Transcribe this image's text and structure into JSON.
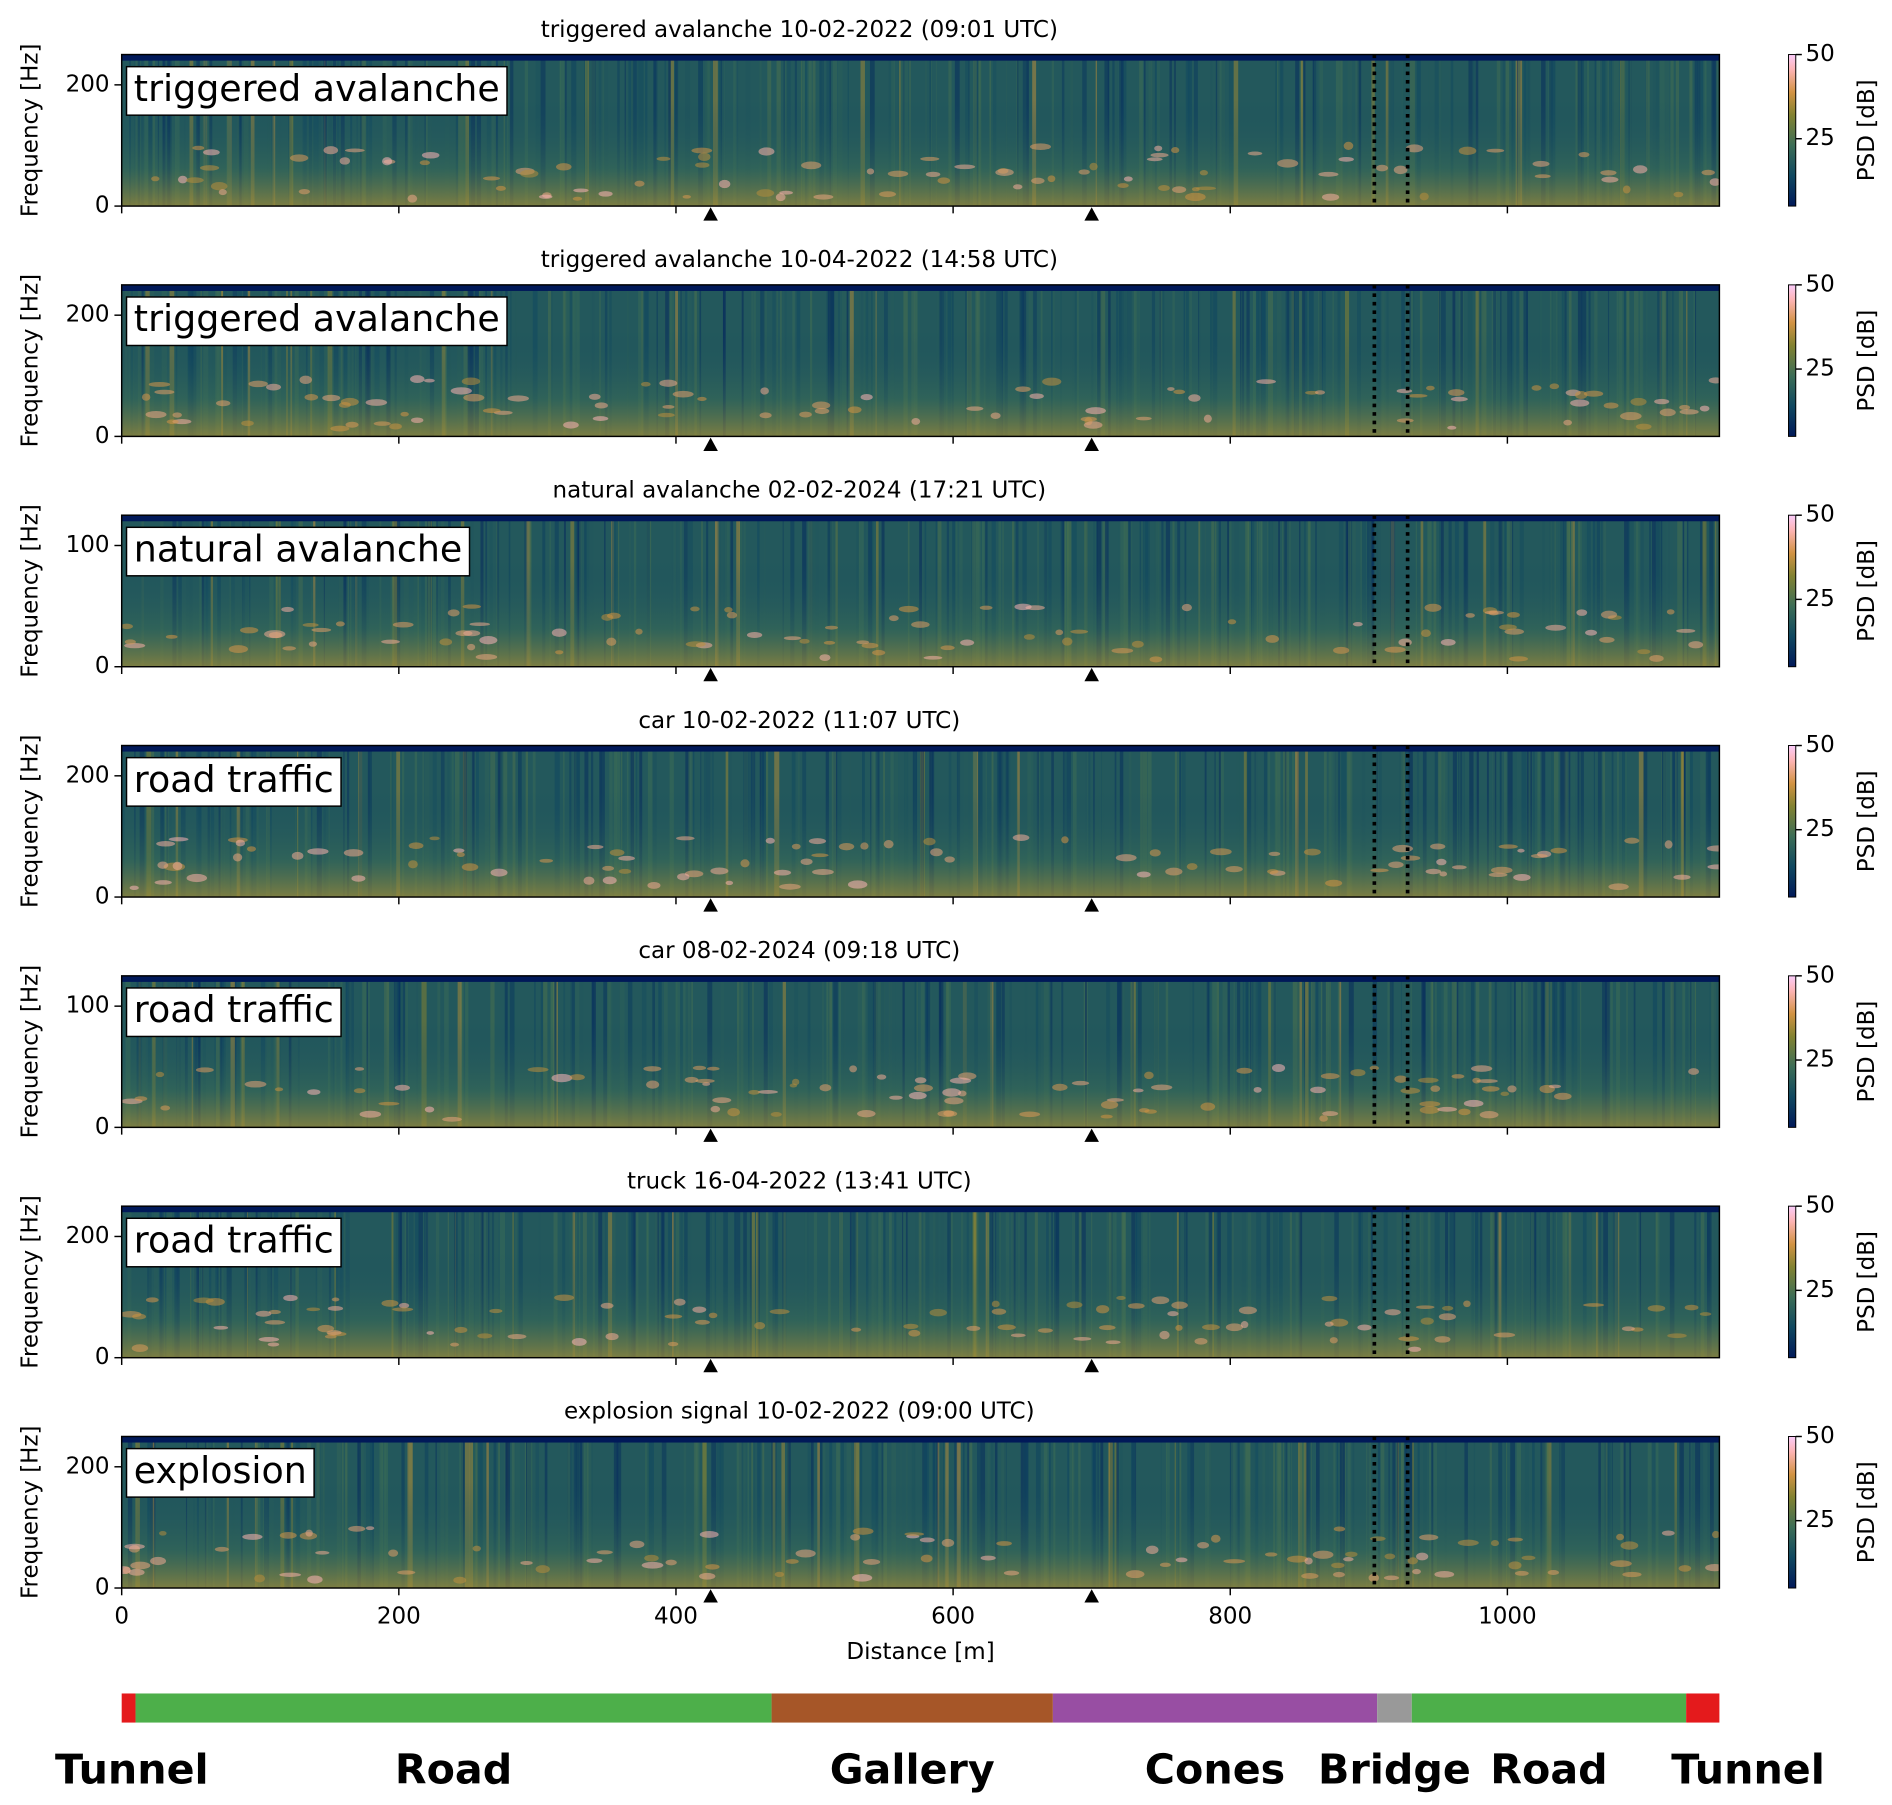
{
  "chart_data": [
    {
      "type": "heatmap",
      "title": "triggered avalanche 10-02-2022 (09:01 UTC)",
      "label": "triggered avalanche",
      "ylabel": "Frequency [Hz]",
      "ylim": [
        0,
        250
      ],
      "yticks": [
        0,
        200
      ],
      "colorbar_label": "PSD [dB]",
      "clim": [
        5,
        50
      ],
      "cticks": [
        25,
        50
      ]
    },
    {
      "type": "heatmap",
      "title": "triggered avalanche 10-04-2022 (14:58 UTC)",
      "label": "triggered avalanche",
      "ylabel": "Frequency [Hz]",
      "ylim": [
        0,
        250
      ],
      "yticks": [
        0,
        200
      ],
      "colorbar_label": "PSD [dB]",
      "clim": [
        5,
        50
      ],
      "cticks": [
        25,
        50
      ]
    },
    {
      "type": "heatmap",
      "title": "natural avalanche 02-02-2024 (17:21 UTC)",
      "label": "natural avalanche",
      "ylabel": "Frequency [Hz]",
      "ylim": [
        0,
        125
      ],
      "yticks": [
        0,
        100
      ],
      "colorbar_label": "PSD [dB]",
      "clim": [
        5,
        50
      ],
      "cticks": [
        25,
        50
      ]
    },
    {
      "type": "heatmap",
      "title": "car 10-02-2022 (11:07 UTC)",
      "label": "road traffic",
      "ylabel": "Frequency [Hz]",
      "ylim": [
        0,
        250
      ],
      "yticks": [
        0,
        200
      ],
      "colorbar_label": "PSD [dB]",
      "clim": [
        5,
        50
      ],
      "cticks": [
        25,
        50
      ]
    },
    {
      "type": "heatmap",
      "title": "car 08-02-2024 (09:18 UTC)",
      "label": "road traffic",
      "ylabel": "Frequency [Hz]",
      "ylim": [
        0,
        125
      ],
      "yticks": [
        0,
        100
      ],
      "colorbar_label": "PSD [dB]",
      "clim": [
        5,
        50
      ],
      "cticks": [
        25,
        50
      ]
    },
    {
      "type": "heatmap",
      "title": "truck 16-04-2022 (13:41 UTC)",
      "label": "road traffic",
      "ylabel": "Frequency [Hz]",
      "ylim": [
        0,
        250
      ],
      "yticks": [
        0,
        200
      ],
      "colorbar_label": "PSD [dB]",
      "clim": [
        5,
        50
      ],
      "cticks": [
        25,
        50
      ]
    },
    {
      "type": "heatmap",
      "title": "explosion signal 10-02-2022 (09:00 UTC)",
      "label": "explosion",
      "ylabel": "Frequency [Hz]",
      "ylim": [
        0,
        250
      ],
      "yticks": [
        0,
        200
      ],
      "colorbar_label": "PSD [dB]",
      "clim": [
        5,
        50
      ],
      "cticks": [
        25,
        50
      ]
    }
  ],
  "distance_axis": {
    "label": "Distance [m]",
    "xlim": [
      0,
      1153
    ],
    "xticks": [
      0,
      200,
      400,
      600,
      800,
      1000
    ]
  },
  "triangle_markers": [
    425,
    700
  ],
  "dotted_lines": [
    904,
    928
  ],
  "sections": [
    {
      "label": "Tunnel",
      "start": 0,
      "end": 10,
      "color": "#e41a1c"
    },
    {
      "label": "Road",
      "start": 10,
      "end": 469,
      "color": "#4daf4a"
    },
    {
      "label": "Gallery",
      "start": 469,
      "end": 672,
      "color": "#a65628"
    },
    {
      "label": "Cones",
      "start": 672,
      "end": 906,
      "color": "#984ea3"
    },
    {
      "label": "Bridge",
      "start": 906,
      "end": 931,
      "color": "#999999"
    },
    {
      "label": "Road",
      "start": 931,
      "end": 1129,
      "color": "#4daf4a"
    },
    {
      "label": "Tunnel",
      "start": 1129,
      "end": 1153,
      "color": "#e41a1c"
    }
  ]
}
